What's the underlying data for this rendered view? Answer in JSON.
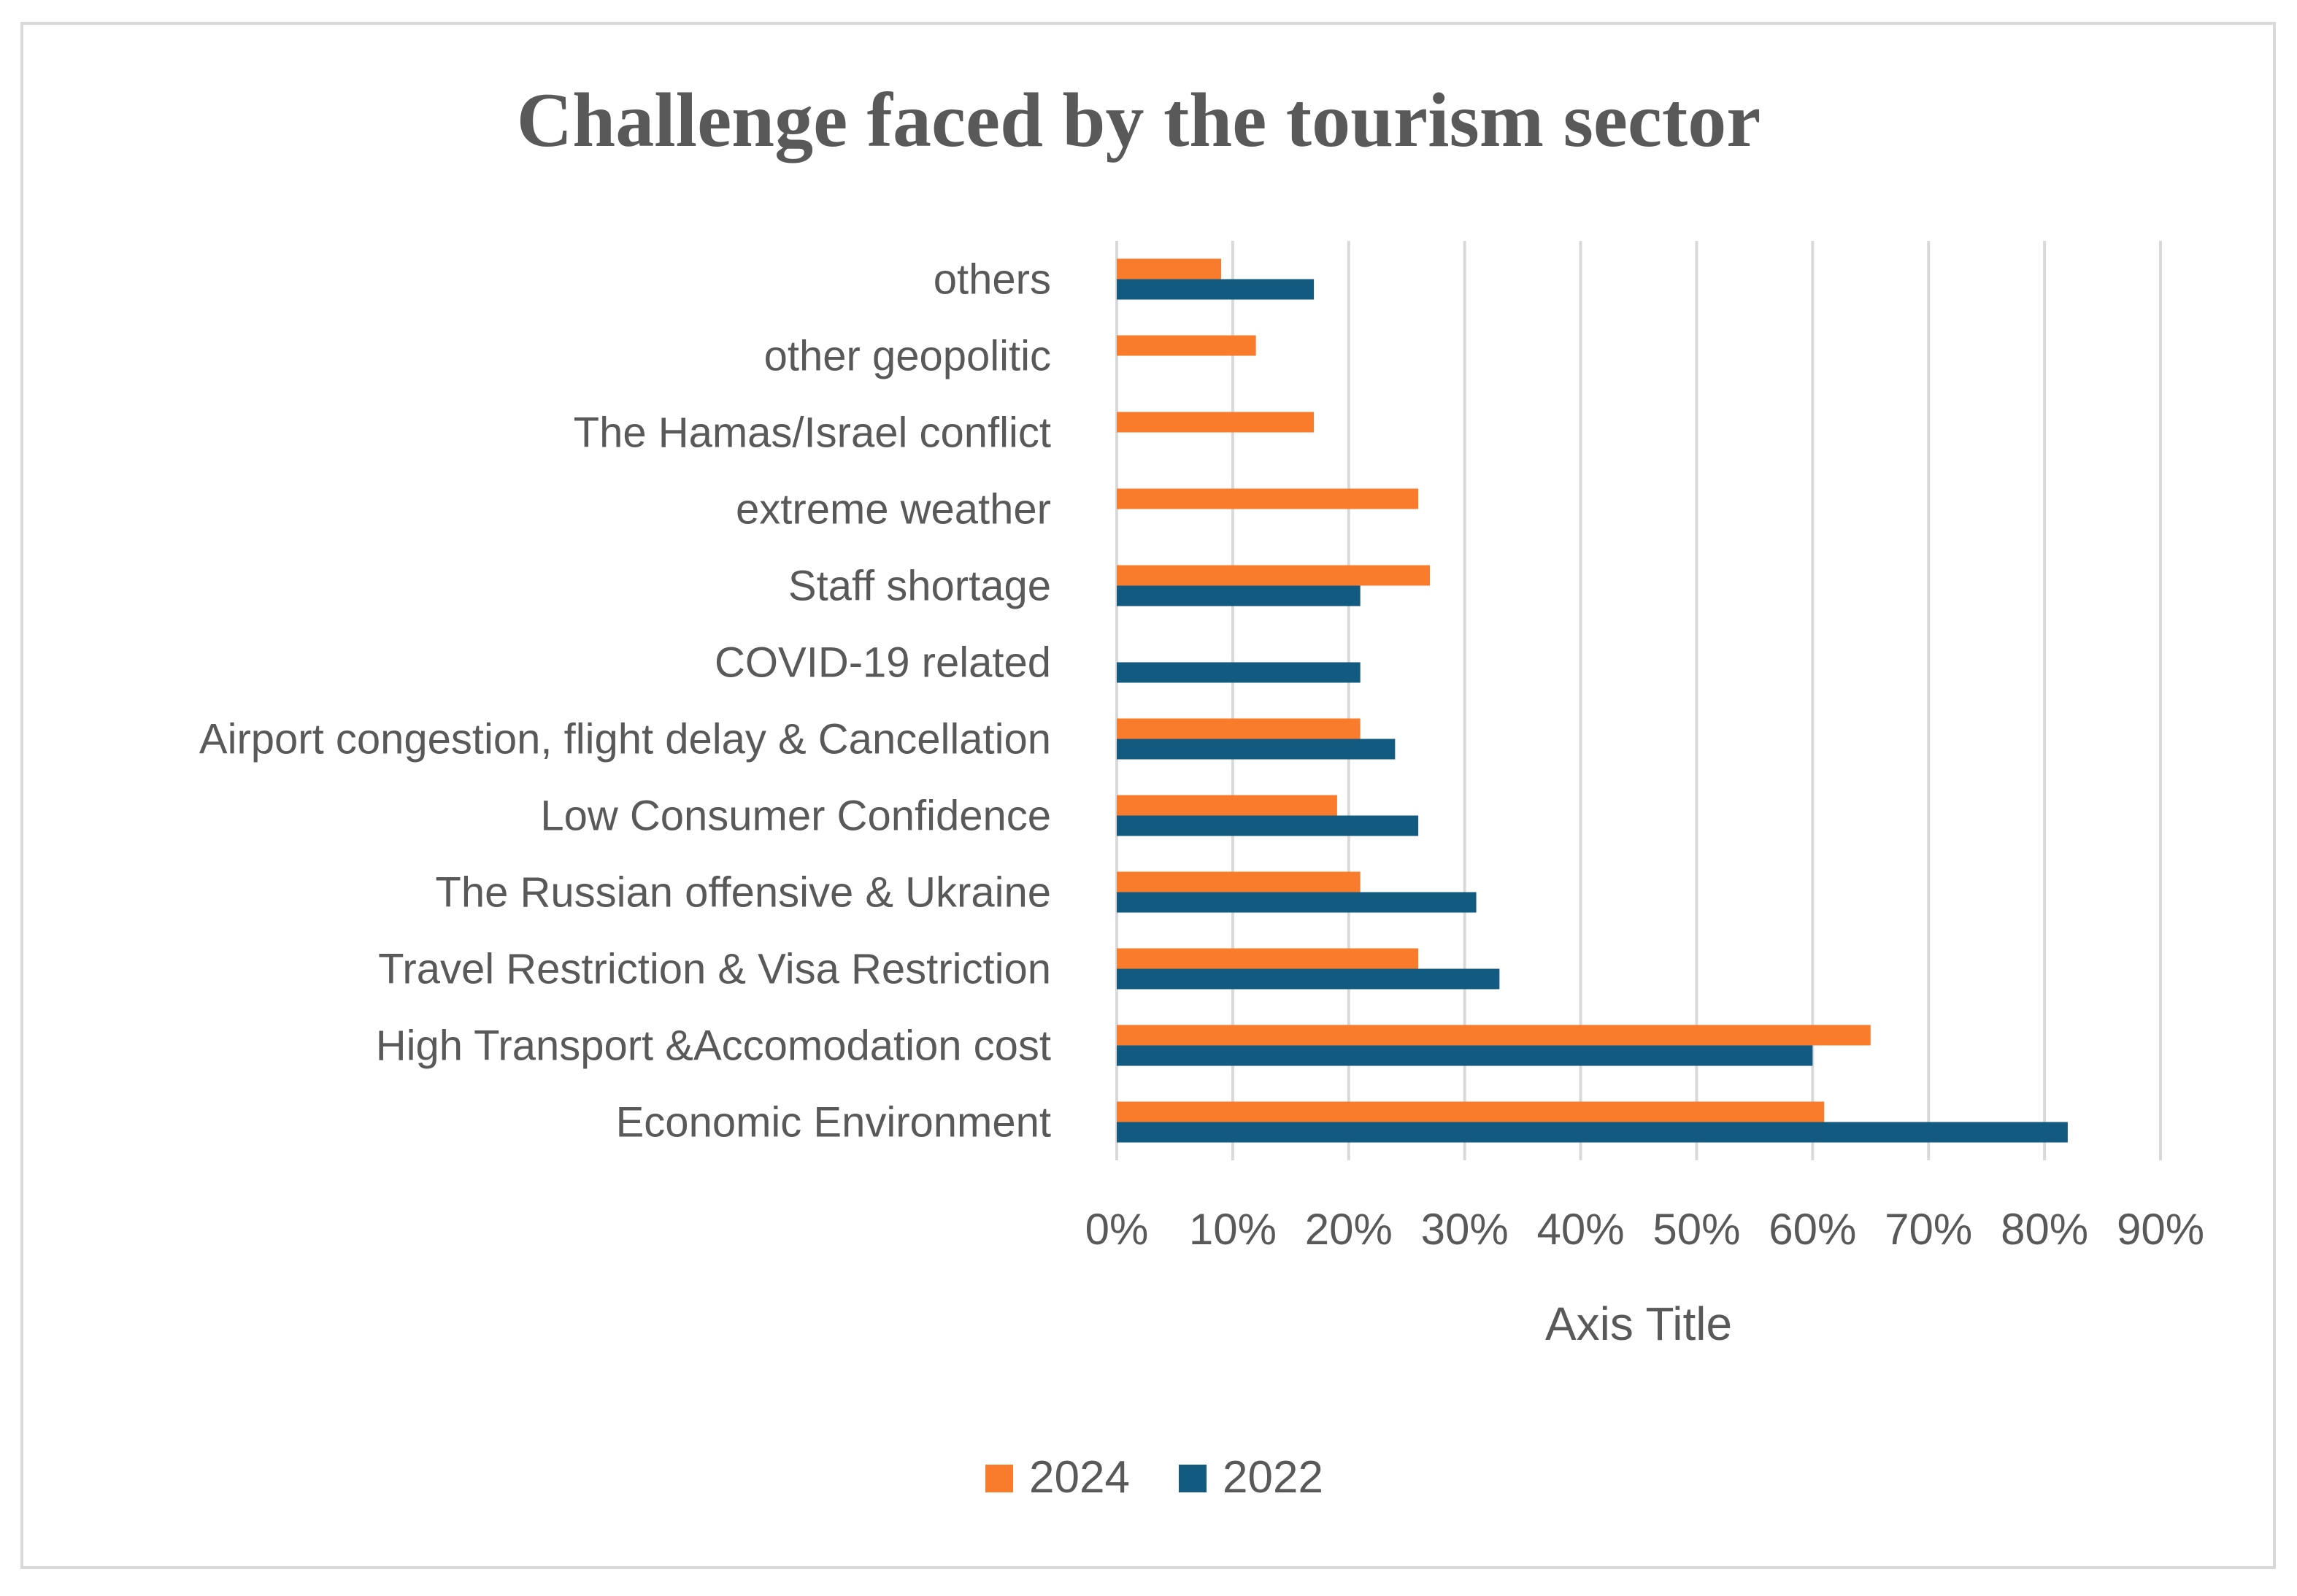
{
  "chart_data": {
    "type": "bar",
    "orientation": "horizontal",
    "title": "Challenge faced by the tourism sector",
    "xlabel": "Axis Title",
    "ylabel": "",
    "xlim": [
      0,
      0.9
    ],
    "x_ticks": [
      "0%",
      "10%",
      "20%",
      "30%",
      "40%",
      "50%",
      "60%",
      "70%",
      "80%",
      "90%"
    ],
    "grid": true,
    "legend_position": "bottom",
    "categories": [
      "others",
      "other geopolitic",
      "The Hamas/Israel conflict",
      "extreme weather",
      "Staff shortage",
      "COVID-19 related",
      "Airport congestion, flight delay & Cancellation",
      "Low Consumer Confidence",
      "The Russian offensive & Ukraine",
      "Travel Restriction & Visa Restriction",
      "High Transport &Accomodation cost",
      "Economic Environment"
    ],
    "series": [
      {
        "name": "2024",
        "color": "#F97C2C",
        "values": [
          0.09,
          0.12,
          0.17,
          0.26,
          0.27,
          null,
          0.21,
          0.19,
          0.21,
          0.26,
          0.65,
          0.61
        ]
      },
      {
        "name": "2022",
        "color": "#125A80",
        "values": [
          0.17,
          null,
          null,
          null,
          0.21,
          0.21,
          0.24,
          0.26,
          0.31,
          0.33,
          0.6,
          0.82
        ]
      }
    ]
  }
}
